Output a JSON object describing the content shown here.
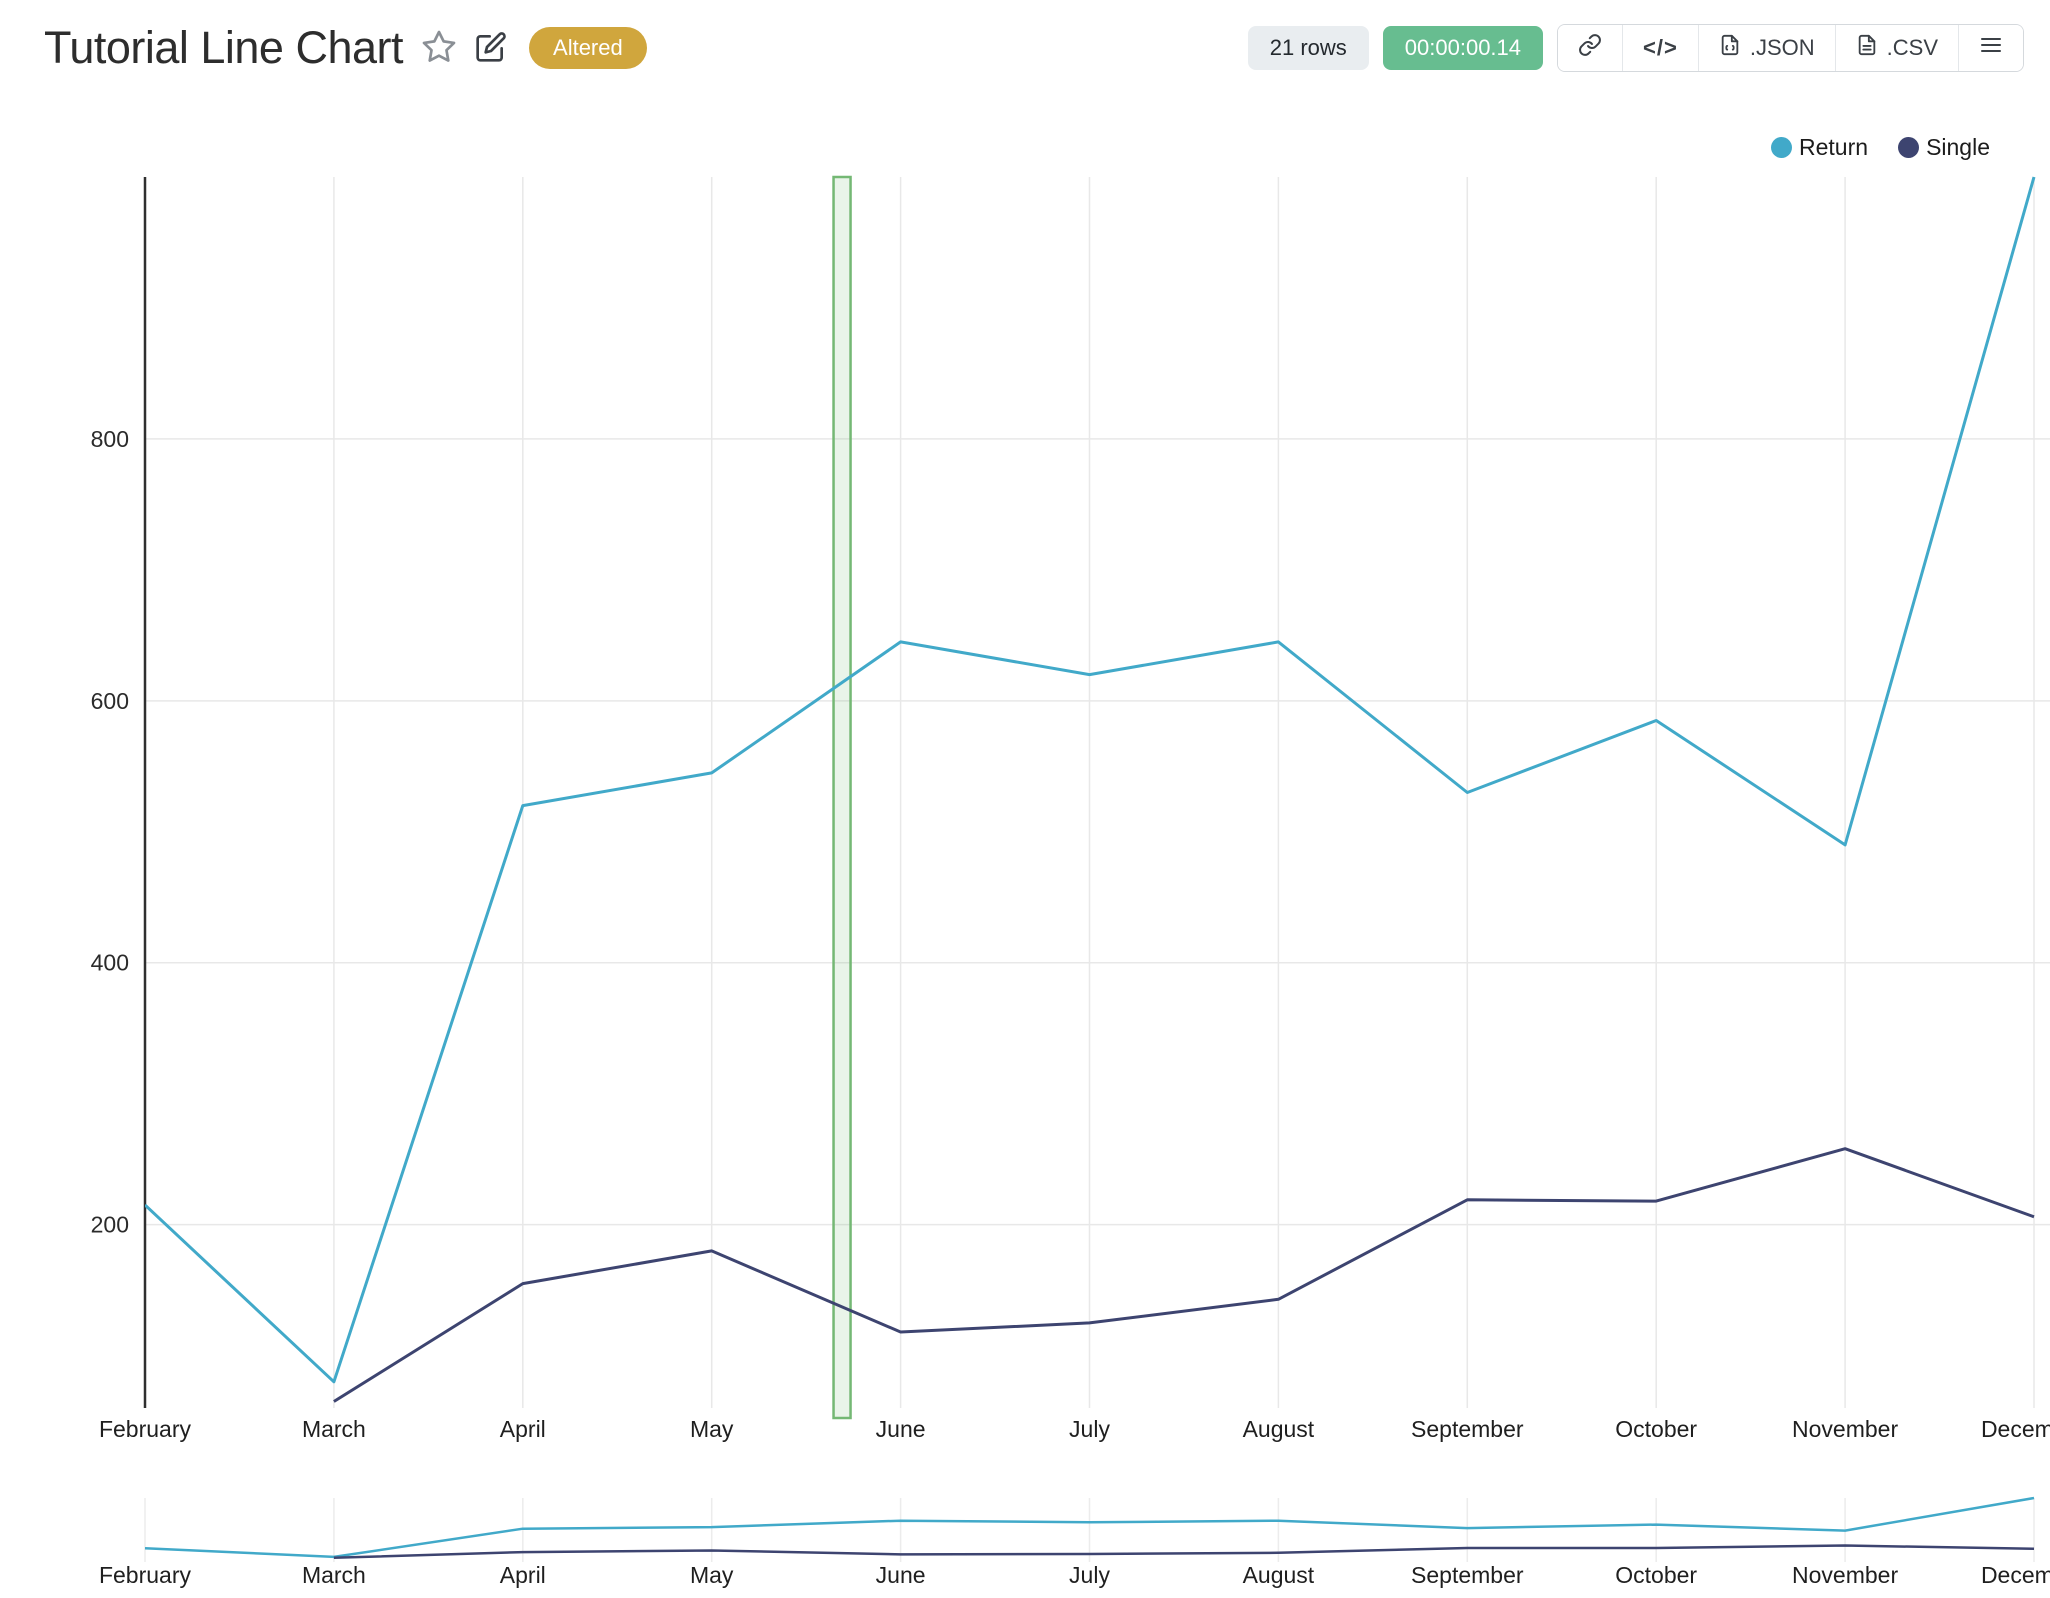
{
  "header": {
    "title": "Tutorial Line Chart",
    "badge": "Altered",
    "rows": "21 rows",
    "timer": "00:00:00.14",
    "buttons": {
      "code": "</>",
      "json": ".JSON",
      "csv": ".CSV"
    }
  },
  "colors": {
    "badge_bg": "#d0a63d",
    "timer_bg": "#67bd90",
    "rows_bg": "#e9edf0",
    "axis": "#2f2f2f",
    "grid": "#e8e8e8"
  },
  "chart_data": {
    "type": "line",
    "x": [
      "February",
      "March",
      "April",
      "May",
      "June",
      "July",
      "August",
      "September",
      "October",
      "November",
      "December"
    ],
    "series": [
      {
        "name": "Return",
        "color": "#41a9c9",
        "values": [
          215,
          80,
          520,
          545,
          645,
          620,
          645,
          530,
          585,
          490,
          1000
        ]
      },
      {
        "name": "Single",
        "color": "#3d4470",
        "values": [
          null,
          65,
          155,
          180,
          118,
          125,
          143,
          219,
          218,
          258,
          206
        ]
      }
    ],
    "yticks": [
      200,
      400,
      600,
      800
    ],
    "ylim": [
      60,
      1000
    ],
    "marker": {
      "position": 3.69,
      "color": "#74b874"
    },
    "grid": true,
    "legend_position": "top-right",
    "has_mini_navigator": true
  }
}
